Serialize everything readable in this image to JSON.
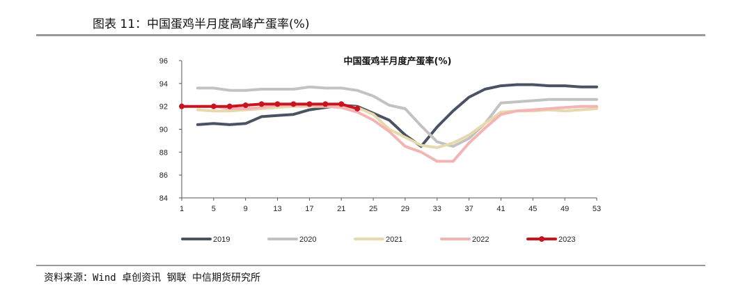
{
  "caption": "图表 11：中国蛋鸡半月度高峰产蛋率(%)",
  "source": "资料来源：Wind 卓创资讯 钢联 中信期货研究所",
  "chart_data": {
    "type": "line",
    "title": "中国蛋鸡半月度产蛋率(%)",
    "xlabel": "",
    "ylabel": "",
    "x_ticks": [
      1,
      5,
      9,
      13,
      17,
      21,
      25,
      29,
      33,
      37,
      41,
      45,
      49,
      53
    ],
    "xlim": [
      1,
      53
    ],
    "ylim": [
      84,
      96
    ],
    "y_ticks": [
      84,
      86,
      88,
      90,
      92,
      94,
      96
    ],
    "legend_position": "bottom",
    "grid": false,
    "series": [
      {
        "name": "2019",
        "color": "#4a5361",
        "x": [
          3,
          5,
          7,
          9,
          11,
          13,
          15,
          17,
          19,
          21,
          23,
          25,
          27,
          29,
          31,
          33,
          35,
          37,
          39,
          41,
          43,
          45,
          47,
          49,
          51,
          53
        ],
        "y": [
          90.4,
          90.5,
          90.4,
          90.5,
          91.1,
          91.2,
          91.3,
          91.7,
          91.9,
          92.1,
          92.0,
          91.4,
          90.8,
          89.5,
          88.5,
          90.2,
          91.6,
          92.8,
          93.5,
          93.8,
          93.9,
          93.9,
          93.8,
          93.8,
          93.7,
          93.7
        ]
      },
      {
        "name": "2020",
        "color": "#c2c2c2",
        "x": [
          3,
          5,
          7,
          9,
          11,
          13,
          15,
          17,
          19,
          21,
          23,
          25,
          27,
          29,
          31,
          33,
          35,
          37,
          39,
          41,
          43,
          45,
          47,
          49,
          51,
          53
        ],
        "y": [
          93.6,
          93.6,
          93.4,
          93.4,
          93.5,
          93.5,
          93.5,
          93.7,
          93.6,
          93.6,
          93.4,
          92.9,
          92.1,
          91.8,
          90.3,
          88.9,
          88.5,
          89.2,
          90.5,
          92.3,
          92.4,
          92.5,
          92.6,
          92.6,
          92.6,
          92.6
        ]
      },
      {
        "name": "2021",
        "color": "#e6d9ad",
        "x": [
          3,
          5,
          7,
          9,
          11,
          13,
          15,
          17,
          19,
          21,
          23,
          25,
          27,
          29,
          31,
          33,
          35,
          37,
          39,
          41,
          43,
          45,
          47,
          49,
          51,
          53
        ],
        "y": [
          91.7,
          91.6,
          91.6,
          91.7,
          91.8,
          91.9,
          92.0,
          92.0,
          92.0,
          92.0,
          91.9,
          91.3,
          90.0,
          89.3,
          88.6,
          88.4,
          88.8,
          89.5,
          90.5,
          91.5,
          91.6,
          91.6,
          91.7,
          91.6,
          91.7,
          91.8
        ]
      },
      {
        "name": "2022",
        "color": "#f4b4b4",
        "x": [
          3,
          5,
          7,
          9,
          11,
          13,
          15,
          17,
          19,
          21,
          23,
          25,
          27,
          29,
          31,
          33,
          35,
          37,
          39,
          41,
          43,
          45,
          47,
          49,
          51,
          53
        ],
        "y": [
          92.0,
          92.0,
          91.8,
          91.8,
          91.9,
          92.1,
          92.1,
          92.1,
          92.0,
          91.9,
          91.5,
          90.8,
          89.8,
          88.5,
          88.0,
          87.2,
          87.2,
          88.8,
          90.1,
          91.3,
          91.6,
          91.7,
          91.8,
          91.9,
          92.0,
          92.0
        ]
      },
      {
        "name": "2023",
        "color": "#c8141e",
        "markers": true,
        "x": [
          1,
          5,
          7,
          9,
          11,
          13,
          15,
          17,
          19,
          21,
          23
        ],
        "y": [
          92.0,
          92.0,
          92.0,
          92.1,
          92.2,
          92.2,
          92.2,
          92.2,
          92.2,
          92.2,
          91.8
        ]
      }
    ]
  }
}
